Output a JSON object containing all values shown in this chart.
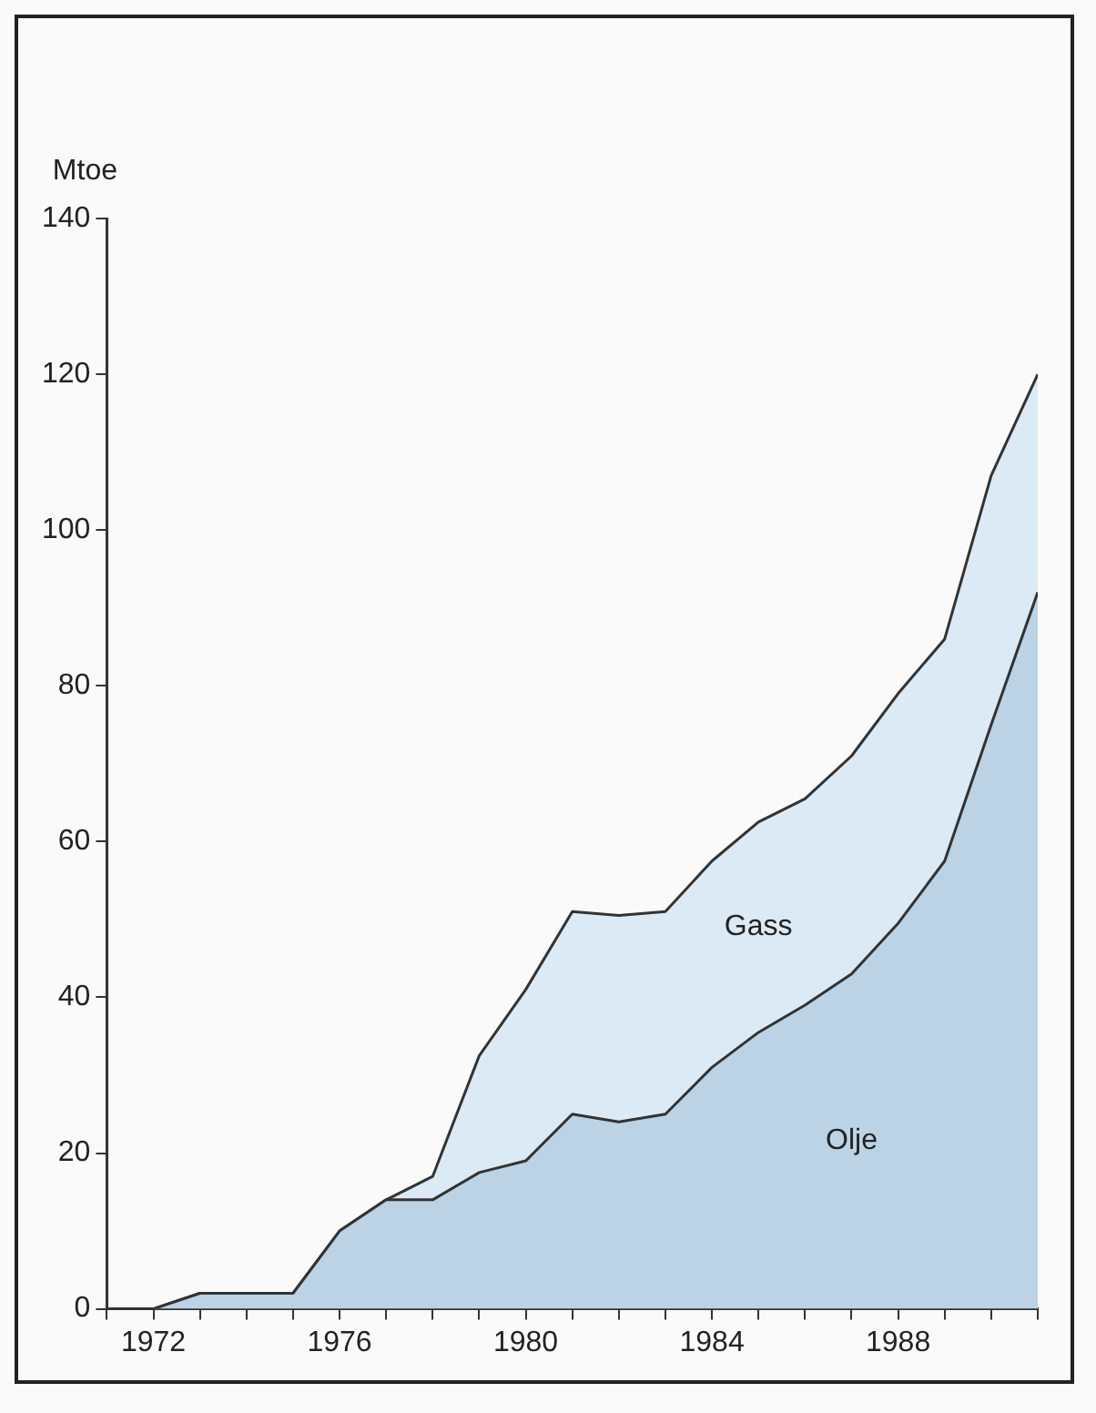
{
  "chart_data": {
    "type": "area",
    "stacked": true,
    "ylabel": "Mtoe",
    "x": [
      1971,
      1972,
      1973,
      1974,
      1975,
      1976,
      1977,
      1978,
      1979,
      1980,
      1981,
      1982,
      1983,
      1984,
      1985,
      1986,
      1987,
      1988,
      1989,
      1990,
      1991
    ],
    "series": [
      {
        "name": "Olje",
        "color": "#bcd3e6",
        "values": [
          0,
          0,
          2,
          2,
          2,
          10,
          14,
          14,
          17.5,
          19,
          25,
          24,
          25,
          31,
          35.5,
          39,
          43,
          49.5,
          57.5,
          75,
          92
        ]
      },
      {
        "name": "Gass",
        "color": "#dceaf5",
        "values": [
          0,
          0,
          0,
          0,
          0,
          0,
          0,
          3,
          15,
          22,
          26,
          26.5,
          26,
          26.5,
          27,
          26.5,
          28,
          29.5,
          28.5,
          32,
          28
        ]
      }
    ],
    "xlim": [
      1971,
      1991
    ],
    "xticks": [
      {
        "value": 1971,
        "label": null
      },
      1972,
      {
        "value": 1973,
        "label": null
      },
      {
        "value": 1974,
        "label": null
      },
      {
        "value": 1975,
        "label": null
      },
      1976,
      {
        "value": 1977,
        "label": null
      },
      {
        "value": 1978,
        "label": null
      },
      {
        "value": 1979,
        "label": null
      },
      1980,
      {
        "value": 1981,
        "label": null
      },
      {
        "value": 1982,
        "label": null
      },
      {
        "value": 1983,
        "label": null
      },
      1984,
      {
        "value": 1985,
        "label": null
      },
      {
        "value": 1986,
        "label": null
      },
      {
        "value": 1987,
        "label": null
      },
      1988,
      {
        "value": 1989,
        "label": null
      },
      {
        "value": 1990,
        "label": null
      },
      {
        "value": 1991,
        "label": null
      }
    ],
    "ylim": [
      0,
      140
    ],
    "yticks": [
      0,
      20,
      40,
      60,
      80,
      100,
      120,
      140
    ],
    "grid": false,
    "legend": false,
    "marker": "none",
    "line_style": "solid"
  }
}
